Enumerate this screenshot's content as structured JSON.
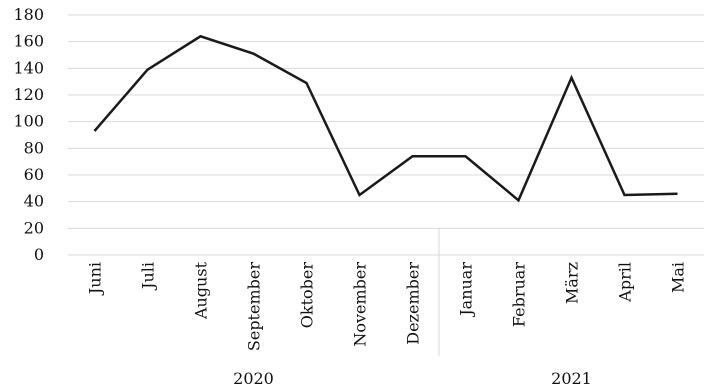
{
  "chart_data": {
    "type": "line",
    "title": "",
    "xlabel": "",
    "ylabel": "",
    "categories": [
      "Juni",
      "Juli",
      "August",
      "September",
      "Oktober",
      "November",
      "Dezember",
      "Januar",
      "Februar",
      "März",
      "April",
      "Mai"
    ],
    "groups": [
      {
        "label": "2020",
        "categories": [
          "Juni",
          "Juli",
          "August",
          "September",
          "Oktober",
          "November",
          "Dezember"
        ]
      },
      {
        "label": "2021",
        "categories": [
          "Januar",
          "Februar",
          "März",
          "April",
          "Mai"
        ]
      }
    ],
    "series": [
      {
        "values": [
          93,
          139,
          164,
          151,
          129,
          45,
          74,
          74,
          41,
          133,
          45,
          46
        ],
        "color": "#1a1a1a"
      }
    ],
    "ylim": [
      0,
      180
    ],
    "yticks": [
      0,
      20,
      40,
      60,
      80,
      100,
      120,
      140,
      160,
      180
    ],
    "grid": true,
    "legend": "none"
  }
}
